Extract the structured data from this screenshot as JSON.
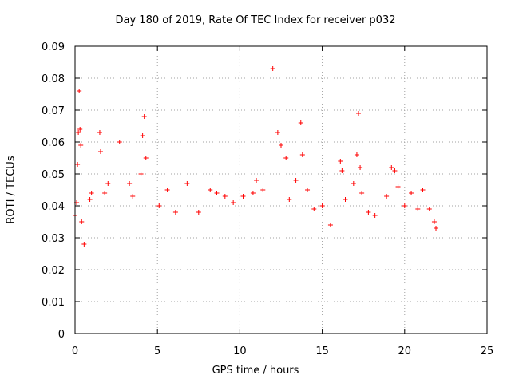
{
  "chart_data": {
    "type": "scatter",
    "title": "Day 180 of 2019, Rate Of TEC Index for receiver p032",
    "xlabel": "GPS time / hours",
    "ylabel": "ROTI / TECUs",
    "xlim": [
      0,
      25
    ],
    "ylim": [
      0,
      0.09
    ],
    "xticks": [
      "0",
      "5",
      "10",
      "15",
      "20",
      "25"
    ],
    "yticks": [
      "0",
      "0.01",
      "0.02",
      "0.03",
      "0.04",
      "0.05",
      "0.06",
      "0.07",
      "0.08",
      "0.09"
    ],
    "grid": true,
    "marker": "+",
    "color": "#ff0000",
    "series": [
      {
        "x": [
          0.0,
          0.1,
          0.15,
          0.2,
          0.25,
          0.3,
          0.35,
          0.4,
          0.55,
          0.9,
          1.0,
          1.5,
          1.55,
          1.8,
          2.0,
          2.7,
          3.3,
          3.5,
          4.0,
          4.1,
          4.2,
          4.3,
          5.1,
          5.6,
          6.1,
          6.8,
          7.5,
          8.2,
          8.6,
          9.1,
          9.6,
          10.2,
          10.8,
          11.0,
          11.4,
          12.0,
          12.3,
          12.5,
          12.8,
          13.0,
          13.4,
          13.7,
          13.8,
          14.1,
          14.5,
          15.0,
          15.5,
          16.1,
          16.2,
          16.4,
          16.9,
          17.1,
          17.2,
          17.3,
          17.4,
          17.8,
          18.2,
          18.9,
          19.2,
          19.4,
          19.6,
          20.0,
          20.4,
          20.8,
          21.1,
          21.5,
          21.8,
          21.9
        ],
        "y": [
          0.037,
          0.041,
          0.053,
          0.063,
          0.076,
          0.064,
          0.059,
          0.035,
          0.028,
          0.042,
          0.044,
          0.063,
          0.057,
          0.044,
          0.047,
          0.06,
          0.047,
          0.043,
          0.05,
          0.062,
          0.068,
          0.055,
          0.04,
          0.045,
          0.038,
          0.047,
          0.038,
          0.045,
          0.044,
          0.043,
          0.041,
          0.043,
          0.044,
          0.048,
          0.045,
          0.083,
          0.063,
          0.059,
          0.055,
          0.042,
          0.048,
          0.066,
          0.056,
          0.045,
          0.039,
          0.04,
          0.034,
          0.054,
          0.051,
          0.042,
          0.047,
          0.056,
          0.069,
          0.052,
          0.044,
          0.038,
          0.037,
          0.043,
          0.052,
          0.051,
          0.046,
          0.04,
          0.044,
          0.039,
          0.045,
          0.039,
          0.035,
          0.033
        ]
      }
    ]
  }
}
